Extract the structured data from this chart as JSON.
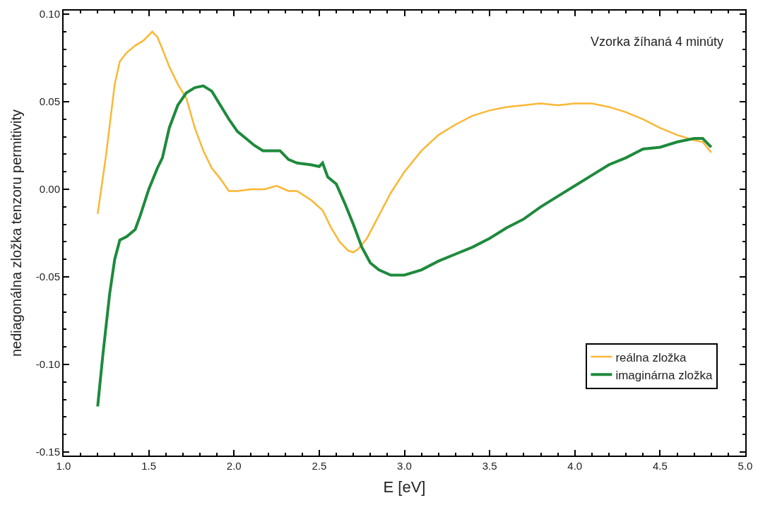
{
  "chart_data": {
    "type": "line",
    "xlabel": "E [eV]",
    "ylabel": "nediagonálna zložka tenzoru permitivity",
    "annotations": [
      "Vzorka žíhaná 4 minúty"
    ],
    "xlim": [
      1.0,
      5.0
    ],
    "xticks": [
      {
        "value": 1.0,
        "label": "1.0"
      },
      1.5,
      {
        "value": 2.0,
        "label": "2.0"
      },
      2.5,
      {
        "value": 3.0,
        "label": "3.0"
      },
      3.5,
      {
        "value": 4.0,
        "label": "4.0"
      },
      4.5,
      {
        "value": 5.0,
        "label": "5.0"
      }
    ],
    "ylim": [
      -0.152,
      0.102
    ],
    "yticks": [
      {
        "value": -0.15,
        "label": "-0.15"
      },
      {
        "value": -0.1,
        "label": "-0.10"
      },
      {
        "value": -0.05,
        "label": "-0.05"
      },
      {
        "value": 0,
        "label": "0.00"
      },
      0.05,
      {
        "value": 0.1,
        "label": "0.10"
      }
    ],
    "legend": "bottom right",
    "marker": "none",
    "line_style": "solid",
    "series": [
      {
        "name": "reálna zložka",
        "color": "#fbb734",
        "x": [
          1.2,
          1.25,
          1.3,
          1.33,
          1.37,
          1.42,
          1.47,
          1.52,
          1.55,
          1.58,
          1.62,
          1.67,
          1.72,
          1.77,
          1.82,
          1.87,
          1.92,
          1.97,
          2.02,
          2.1,
          2.18,
          2.25,
          2.32,
          2.37,
          2.45,
          2.52,
          2.57,
          2.62,
          2.67,
          2.7,
          2.73,
          2.78,
          2.85,
          2.92,
          3.0,
          3.1,
          3.2,
          3.3,
          3.4,
          3.5,
          3.6,
          3.7,
          3.8,
          3.9,
          4.0,
          4.1,
          4.2,
          4.3,
          4.4,
          4.5,
          4.6,
          4.7,
          4.75,
          4.8
        ],
        "values": [
          -0.014,
          0.02,
          0.06,
          0.073,
          0.078,
          0.082,
          0.085,
          0.09,
          0.087,
          0.08,
          0.07,
          0.06,
          0.052,
          0.035,
          0.022,
          0.012,
          0.006,
          -0.001,
          -0.001,
          0.0,
          0.0,
          0.002,
          -0.001,
          -0.001,
          -0.006,
          -0.012,
          -0.022,
          -0.03,
          -0.035,
          -0.036,
          -0.034,
          -0.028,
          -0.015,
          -0.002,
          0.01,
          0.022,
          0.031,
          0.037,
          0.042,
          0.045,
          0.047,
          0.048,
          0.049,
          0.048,
          0.049,
          0.049,
          0.047,
          0.044,
          0.04,
          0.035,
          0.031,
          0.028,
          0.027,
          0.021
        ]
      },
      {
        "name": "imaginárna zložka",
        "color": "#1e8a3c",
        "x": [
          1.2,
          1.23,
          1.27,
          1.3,
          1.33,
          1.37,
          1.42,
          1.45,
          1.5,
          1.55,
          1.58,
          1.62,
          1.67,
          1.72,
          1.77,
          1.82,
          1.87,
          1.92,
          1.97,
          2.02,
          2.07,
          2.12,
          2.17,
          2.22,
          2.27,
          2.32,
          2.37,
          2.45,
          2.5,
          2.52,
          2.55,
          2.6,
          2.65,
          2.7,
          2.75,
          2.8,
          2.85,
          2.92,
          3.0,
          3.1,
          3.2,
          3.3,
          3.4,
          3.5,
          3.6,
          3.7,
          3.8,
          3.9,
          4.0,
          4.1,
          4.2,
          4.3,
          4.4,
          4.5,
          4.6,
          4.7,
          4.75,
          4.8
        ],
        "values": [
          -0.124,
          -0.095,
          -0.06,
          -0.04,
          -0.029,
          -0.027,
          -0.023,
          -0.015,
          0.0,
          0.012,
          0.018,
          0.035,
          0.048,
          0.055,
          0.058,
          0.059,
          0.056,
          0.048,
          0.04,
          0.033,
          0.029,
          0.025,
          0.022,
          0.022,
          0.022,
          0.017,
          0.015,
          0.014,
          0.013,
          0.015,
          0.007,
          0.003,
          -0.008,
          -0.02,
          -0.033,
          -0.042,
          -0.046,
          -0.049,
          -0.049,
          -0.046,
          -0.041,
          -0.037,
          -0.033,
          -0.028,
          -0.022,
          -0.017,
          -0.01,
          -0.004,
          0.002,
          0.008,
          0.014,
          0.018,
          0.023,
          0.024,
          0.027,
          0.029,
          0.029,
          0.024
        ]
      }
    ]
  }
}
